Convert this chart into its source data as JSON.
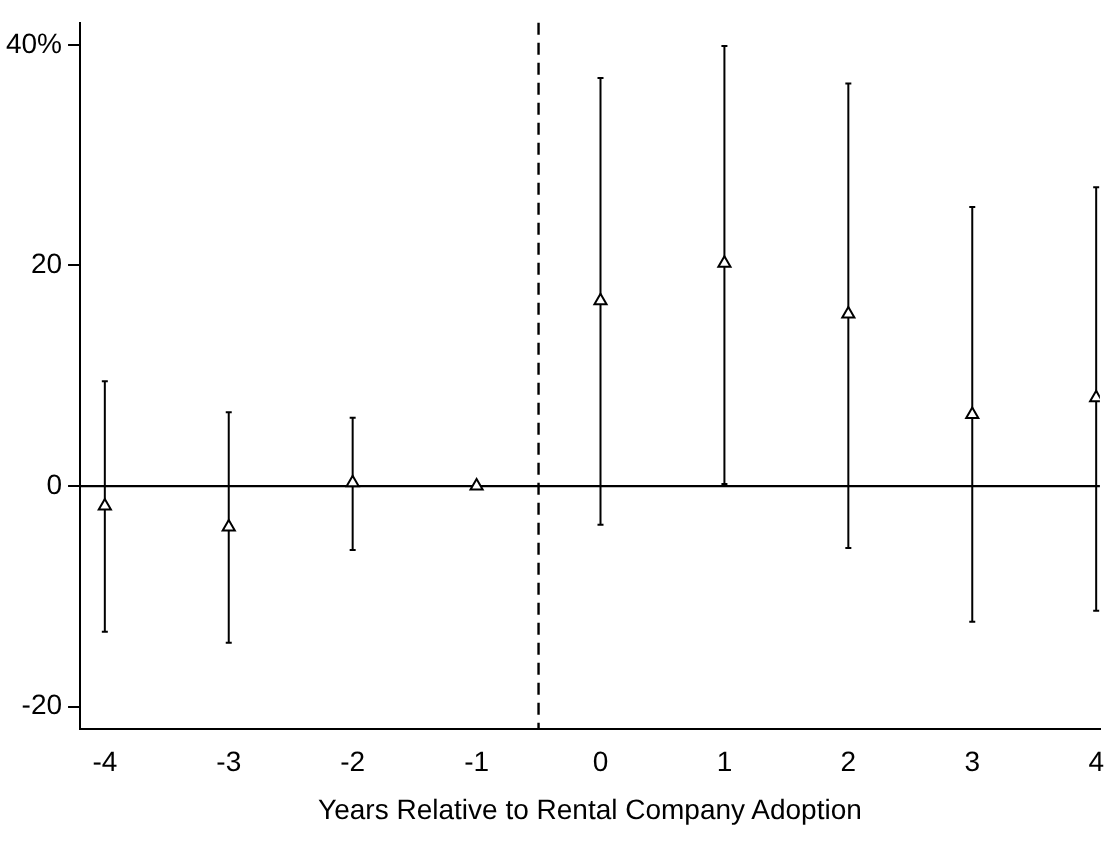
{
  "chart_data": {
    "type": "scatter",
    "xlabel": "Years Relative to Rental Company Adoption",
    "x": [
      -4,
      -3,
      -2,
      -1,
      0,
      1,
      2,
      3,
      4
    ],
    "values": [
      -1.8,
      -3.7,
      0.3,
      0,
      16.8,
      20.2,
      15.6,
      6.5,
      8.0
    ],
    "errors": [
      [
        -13.2,
        9.5
      ],
      [
        -14.2,
        6.7
      ],
      [
        -5.8,
        6.2
      ],
      null,
      [
        -3.5,
        37.0
      ],
      [
        0.2,
        39.9
      ],
      [
        -5.6,
        36.5
      ],
      [
        -12.3,
        25.3
      ],
      [
        -11.3,
        27.1
      ]
    ],
    "color": "#000000",
    "marker": "triangle",
    "xlim": [
      -4.2,
      4.03
    ],
    "xticks": [
      -4,
      -3,
      -2,
      -1,
      0,
      1,
      2,
      3,
      4
    ],
    "ylim": [
      -22,
      42
    ],
    "yticks": [
      -20,
      0,
      20,
      {
        "value": 40,
        "label": "40%"
      }
    ],
    "ref_lines": [
      {
        "axis": "x",
        "value": -0.5,
        "line_style": "dashed",
        "color": "#000000"
      },
      {
        "axis": "y",
        "value": 0,
        "line_style": "solid",
        "color": "#000000"
      }
    ],
    "grid": false,
    "legend": false
  }
}
